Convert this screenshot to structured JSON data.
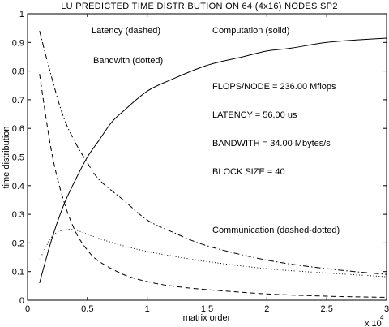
{
  "chart_data": {
    "type": "line",
    "title": "LU PREDICTED TIME DISTRIBUTION ON 64 (4x16) NODES SP2",
    "xlabel": "matrix order",
    "ylabel": "time distribution",
    "x_multiplier_label": "x 10",
    "x_multiplier_exponent": "4",
    "xlim": [
      0,
      30000
    ],
    "ylim": [
      0,
      1
    ],
    "xticks": [
      0,
      5000,
      10000,
      15000,
      20000,
      25000,
      30000
    ],
    "xtick_labels": [
      "0",
      "0.5",
      "1",
      "1.5",
      "2",
      "2.5",
      "3"
    ],
    "yticks": [
      0,
      0.1,
      0.2,
      0.3,
      0.4,
      0.5,
      0.6,
      0.7,
      0.8,
      0.9,
      1
    ],
    "ytick_labels": [
      "0",
      "0.1",
      "0.2",
      "0.3",
      "0.4",
      "0.5",
      "0.6",
      "0.7",
      "0.8",
      "0.9",
      "1"
    ],
    "grid": false,
    "legend": "none",
    "annotations": {
      "latency_label": "Latency (dashed)",
      "computation_label": "Computation (solid)",
      "bandwidth_label": "Bandwith (dotted)",
      "flops": "FLOPS/NODE = 236.00 Mflops",
      "latency_value": "LATENCY = 56.00 us",
      "bandwidth_value": "BANDWITH = 34.00 Mbytes/s",
      "block_size": "BLOCK SIZE = 40",
      "communication_label": "Communication (dashed-dotted)"
    },
    "series": [
      {
        "style": "solid",
        "x": [
          1000,
          2000,
          3000,
          4000,
          5000,
          6000,
          7000,
          8000,
          10000,
          12000,
          15000,
          18000,
          20000,
          22000,
          25000,
          28000,
          30000
        ],
        "values": [
          0.06,
          0.21,
          0.33,
          0.42,
          0.5,
          0.56,
          0.62,
          0.66,
          0.73,
          0.77,
          0.82,
          0.85,
          0.87,
          0.88,
          0.9,
          0.91,
          0.915
        ]
      },
      {
        "style": "dashed",
        "x": [
          1000,
          2000,
          3000,
          4000,
          5000,
          6000,
          8000,
          10000,
          12000,
          15000,
          20000,
          25000,
          30000
        ],
        "values": [
          0.79,
          0.52,
          0.35,
          0.24,
          0.175,
          0.135,
          0.09,
          0.065,
          0.05,
          0.037,
          0.022,
          0.014,
          0.01
        ]
      },
      {
        "style": "dotted",
        "x": [
          1000,
          2000,
          3000,
          4000,
          5000,
          6000,
          8000,
          10000,
          12000,
          15000,
          20000,
          25000,
          30000
        ],
        "values": [
          0.14,
          0.22,
          0.245,
          0.245,
          0.23,
          0.215,
          0.19,
          0.17,
          0.155,
          0.135,
          0.11,
          0.095,
          0.082
        ]
      },
      {
        "style": "dashed-dotted",
        "x": [
          1000,
          2000,
          3000,
          4000,
          5000,
          6000,
          8000,
          10000,
          12000,
          15000,
          20000,
          25000,
          30000
        ],
        "values": [
          0.94,
          0.78,
          0.64,
          0.55,
          0.48,
          0.42,
          0.35,
          0.28,
          0.24,
          0.19,
          0.14,
          0.11,
          0.09
        ]
      }
    ]
  }
}
